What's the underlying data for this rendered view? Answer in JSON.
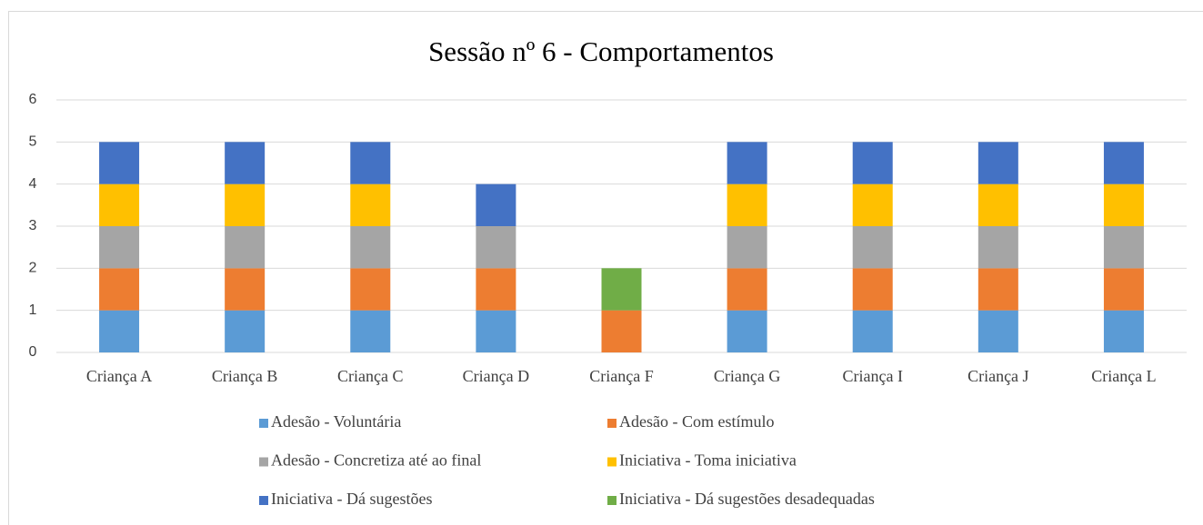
{
  "chart_data": {
    "type": "stacked_bar",
    "title": "Sessão nº 6 - Comportamentos",
    "categories": [
      "Criança A",
      "Criança B",
      "Criança C",
      "Criança D",
      "Criança F",
      "Criança G",
      "Criança I",
      "Criança J",
      "Criança L"
    ],
    "series": [
      {
        "name": "Adesão - Voluntária",
        "color": "#5b9bd5",
        "values": [
          1,
          1,
          1,
          1,
          0,
          1,
          1,
          1,
          1
        ]
      },
      {
        "name": "Adesão - Com estímulo",
        "color": "#ed7d31",
        "values": [
          1,
          1,
          1,
          1,
          1,
          1,
          1,
          1,
          1
        ]
      },
      {
        "name": "Adesão - Concretiza até ao final",
        "color": "#a5a5a5",
        "values": [
          1,
          1,
          1,
          1,
          0,
          1,
          1,
          1,
          1
        ]
      },
      {
        "name": "Iniciativa - Toma iniciativa",
        "color": "#ffc000",
        "values": [
          1,
          1,
          1,
          0,
          0,
          1,
          1,
          1,
          1
        ]
      },
      {
        "name": "Iniciativa - Dá sugestões",
        "color": "#4472c4",
        "values": [
          1,
          1,
          1,
          1,
          0,
          1,
          1,
          1,
          1
        ]
      },
      {
        "name": "Iniciativa - Dá sugestões desadequadas",
        "color": "#70ad47",
        "values": [
          0,
          0,
          0,
          0,
          1,
          0,
          0,
          0,
          0
        ]
      }
    ],
    "ylim": [
      0,
      6
    ],
    "yticks": [
      0,
      1,
      2,
      3,
      4,
      5,
      6
    ],
    "grid": true,
    "legend": "bottom"
  }
}
